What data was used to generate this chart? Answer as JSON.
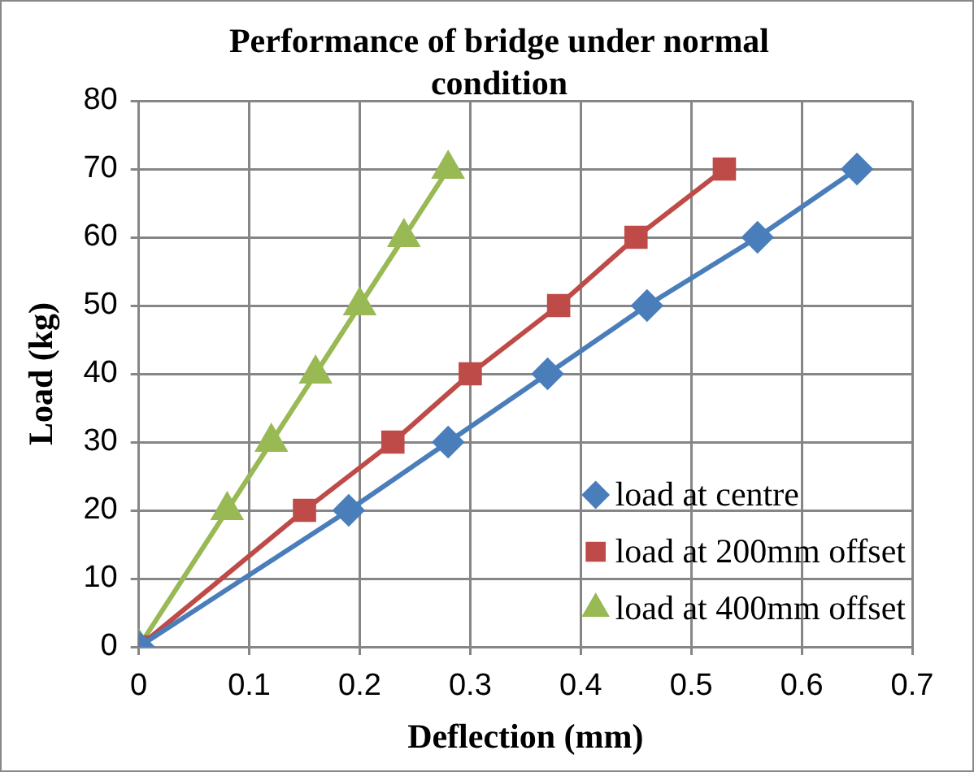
{
  "chart_data": {
    "type": "line",
    "title": "Performance of bridge under normal condition",
    "xlabel": "Deflection (mm)",
    "ylabel": "Load (kg)",
    "xlim": [
      0,
      0.7
    ],
    "xticks": [
      0,
      0.1,
      0.2,
      0.3,
      0.4,
      0.5,
      0.6,
      0.7
    ],
    "ylim": [
      0,
      80
    ],
    "yticks": [
      0,
      10,
      20,
      30,
      40,
      50,
      60,
      70,
      80
    ],
    "grid": true,
    "legend": "bottom right",
    "series": [
      {
        "name": "load at centre",
        "color": "#4a7ebb",
        "marker": "diamond",
        "x": [
          0,
          0.19,
          0.28,
          0.37,
          0.46,
          0.56,
          0.65
        ],
        "values": [
          0,
          20,
          30,
          40,
          50,
          60,
          70
        ]
      },
      {
        "name": "load at 200mm offset",
        "color": "#be4b48",
        "marker": "square",
        "x": [
          0,
          0.15,
          0.23,
          0.3,
          0.38,
          0.45,
          0.53
        ],
        "values": [
          0,
          20,
          30,
          40,
          50,
          60,
          70
        ]
      },
      {
        "name": "load at 400mm offset",
        "color": "#98b954",
        "marker": "triangle",
        "x": [
          0,
          0.08,
          0.12,
          0.16,
          0.2,
          0.24,
          0.28
        ],
        "values": [
          0,
          20,
          30,
          40,
          50,
          60,
          70
        ]
      }
    ]
  }
}
